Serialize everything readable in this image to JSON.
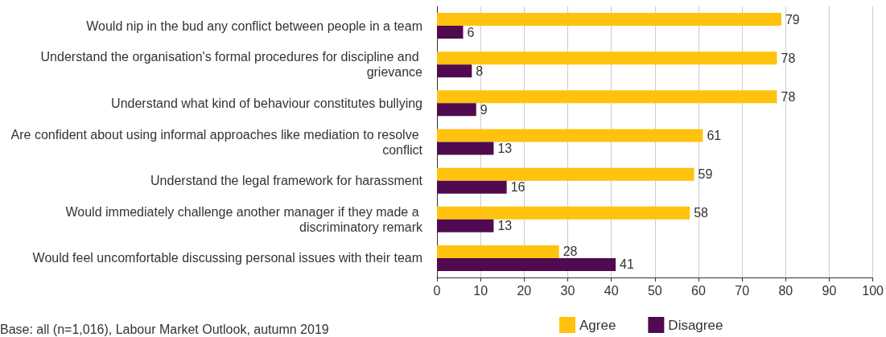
{
  "chart_data": {
    "type": "bar",
    "orientation": "horizontal",
    "categories": [
      "Would nip in the bud any conflict between people in a team",
      "Understand the organisation's formal procedures for discipline and grievance",
      "Understand what kind of behaviour constitutes bullying",
      "Are confident about using informal approaches like mediation to resolve conflict",
      "Understand the legal framework for harassment",
      "Would immediately challenge another manager if they made a discriminatory remark",
      "Would feel uncomfortable discussing personal issues with their team"
    ],
    "series": [
      {
        "name": "Agree",
        "color": "#ffc20e",
        "values": [
          79,
          78,
          78,
          61,
          59,
          58,
          28
        ]
      },
      {
        "name": "Disagree",
        "color": "#500a4f",
        "values": [
          6,
          8,
          9,
          13,
          16,
          13,
          41
        ]
      }
    ],
    "xlim": [
      0,
      100
    ],
    "xticks": [
      0,
      10,
      20,
      30,
      40,
      50,
      60,
      70,
      80,
      90,
      100
    ],
    "grid": "x",
    "legend": "bottom",
    "data_labels": true,
    "annotations": [
      "Base: all (n=1,016), Labour Market Outlook, autumn 2019"
    ]
  }
}
